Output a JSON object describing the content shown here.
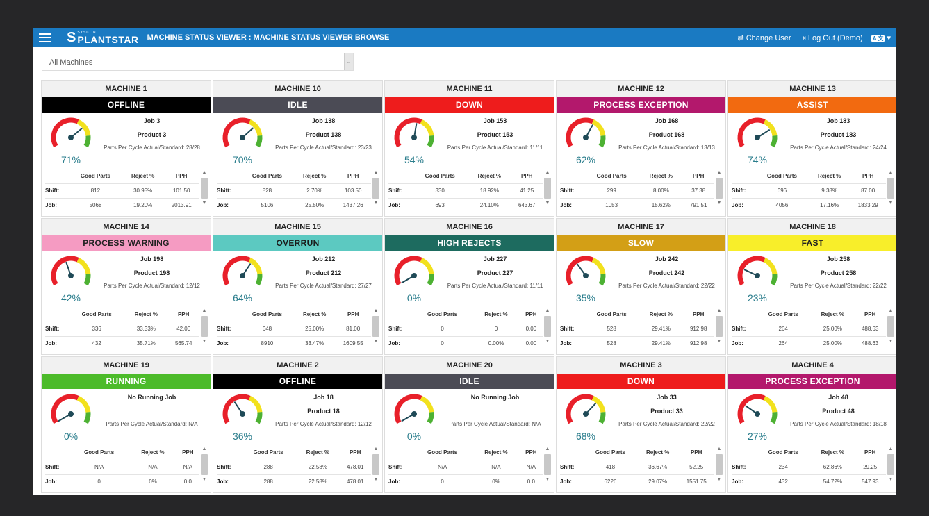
{
  "header": {
    "brand_small": "SYSCON",
    "brand": "PLANTSTAR",
    "title": "MACHINE STATUS VIEWER : MACHINE STATUS VIEWER BROWSE",
    "change_user": "⇄ Change User",
    "logout": "⇥ Log Out (Demo)",
    "lang": "A 文",
    "lang_caret": "▾"
  },
  "filter": {
    "value": "All Machines",
    "arrow": "⌄"
  },
  "table_headers": [
    "",
    "Good Parts",
    "Reject %",
    "PPH"
  ],
  "row_labels": [
    "Shift:",
    "Job:"
  ],
  "gauge_colors": {
    "red": "#e8202a",
    "yellow": "#f2e11d",
    "green": "#4db133",
    "needle": "#1f4a57"
  },
  "machines": [
    {
      "name": "MACHINE 1",
      "status": "OFFLINE",
      "bg": "#000000",
      "fg": "#ffffff",
      "pct": 71,
      "job": "Job 3",
      "product": "Product 3",
      "ppc": "Parts Per Cycle Actual/Standard: 28/28",
      "shift": [
        "812",
        "30.95%",
        "101.50"
      ],
      "jobrow": [
        "5068",
        "19.20%",
        "2013.91"
      ]
    },
    {
      "name": "MACHINE 10",
      "status": "IDLE",
      "bg": "#4b4b55",
      "fg": "#ffffff",
      "pct": 70,
      "job": "Job 138",
      "product": "Product 138",
      "ppc": "Parts Per Cycle Actual/Standard: 23/23",
      "shift": [
        "828",
        "2.70%",
        "103.50"
      ],
      "jobrow": [
        "5106",
        "25.50%",
        "1437.26"
      ]
    },
    {
      "name": "MACHINE 11",
      "status": "DOWN",
      "bg": "#ee1c1c",
      "fg": "#ffffff",
      "pct": 54,
      "job": "Job 153",
      "product": "Product 153",
      "ppc": "Parts Per Cycle Actual/Standard: 11/11",
      "shift": [
        "330",
        "18.92%",
        "41.25"
      ],
      "jobrow": [
        "693",
        "24.10%",
        "643.67"
      ]
    },
    {
      "name": "MACHINE 12",
      "status": "PROCESS EXCEPTION",
      "bg": "#b3186c",
      "fg": "#ffffff",
      "pct": 62,
      "job": "Job 168",
      "product": "Product 168",
      "ppc": "Parts Per Cycle Actual/Standard: 13/13",
      "shift": [
        "299",
        "8.00%",
        "37.38"
      ],
      "jobrow": [
        "1053",
        "15.62%",
        "791.51"
      ]
    },
    {
      "name": "MACHINE 13",
      "status": "ASSIST",
      "bg": "#f26a10",
      "fg": "#ffffff",
      "pct": 74,
      "job": "Job 183",
      "product": "Product 183",
      "ppc": "Parts Per Cycle Actual/Standard: 24/24",
      "shift": [
        "696",
        "9.38%",
        "87.00"
      ],
      "jobrow": [
        "4056",
        "17.16%",
        "1833.29"
      ]
    },
    {
      "name": "MACHINE 14",
      "status": "PROCESS WARNING",
      "bg": "#f59bc2",
      "fg": "#222222",
      "pct": 42,
      "job": "Job 198",
      "product": "Product 198",
      "ppc": "Parts Per Cycle Actual/Standard: 12/12",
      "shift": [
        "336",
        "33.33%",
        "42.00"
      ],
      "jobrow": [
        "432",
        "35.71%",
        "565.74"
      ]
    },
    {
      "name": "MACHINE 15",
      "status": "OVERRUN",
      "bg": "#5cc9c1",
      "fg": "#1a1a1a",
      "pct": 64,
      "job": "Job 212",
      "product": "Product 212",
      "ppc": "Parts Per Cycle Actual/Standard: 27/27",
      "shift": [
        "648",
        "25.00%",
        "81.00"
      ],
      "jobrow": [
        "8910",
        "33.47%",
        "1609.55"
      ]
    },
    {
      "name": "MACHINE 16",
      "status": "HIGH REJECTS",
      "bg": "#1d6b5f",
      "fg": "#ffffff",
      "pct": 0,
      "job": "Job 227",
      "product": "Product 227",
      "ppc": "Parts Per Cycle Actual/Standard: 11/11",
      "shift": [
        "0",
        "0",
        "0.00"
      ],
      "jobrow": [
        "0",
        "0.00%",
        "0.00"
      ]
    },
    {
      "name": "MACHINE 17",
      "status": "SLOW",
      "bg": "#d39f16",
      "fg": "#ffffff",
      "pct": 35,
      "job": "Job 242",
      "product": "Product 242",
      "ppc": "Parts Per Cycle Actual/Standard: 22/22",
      "shift": [
        "528",
        "29.41%",
        "912.98"
      ],
      "jobrow": [
        "528",
        "29.41%",
        "912.98"
      ]
    },
    {
      "name": "MACHINE 18",
      "status": "FAST",
      "bg": "#f8ee2a",
      "fg": "#222222",
      "pct": 23,
      "job": "Job 258",
      "product": "Product 258",
      "ppc": "Parts Per Cycle Actual/Standard: 22/22",
      "shift": [
        "264",
        "25.00%",
        "488.63"
      ],
      "jobrow": [
        "264",
        "25.00%",
        "488.63"
      ]
    },
    {
      "name": "MACHINE 19",
      "status": "RUNNING",
      "bg": "#4cbb2a",
      "fg": "#ffffff",
      "pct": 0,
      "job": "No Running Job",
      "product": "",
      "ppc": "Parts Per Cycle Actual/Standard: N/A",
      "shift": [
        "N/A",
        "N/A",
        "N/A"
      ],
      "jobrow": [
        "0",
        "0%",
        "0.0"
      ]
    },
    {
      "name": "MACHINE 2",
      "status": "OFFLINE",
      "bg": "#000000",
      "fg": "#ffffff",
      "pct": 36,
      "job": "Job 18",
      "product": "Product 18",
      "ppc": "Parts Per Cycle Actual/Standard: 12/12",
      "shift": [
        "288",
        "22.58%",
        "478.01"
      ],
      "jobrow": [
        "288",
        "22.58%",
        "478.01"
      ]
    },
    {
      "name": "MACHINE 20",
      "status": "IDLE",
      "bg": "#4b4b55",
      "fg": "#ffffff",
      "pct": 0,
      "job": "No Running Job",
      "product": "",
      "ppc": "Parts Per Cycle Actual/Standard: N/A",
      "shift": [
        "N/A",
        "N/A",
        "N/A"
      ],
      "jobrow": [
        "0",
        "0%",
        "0.0"
      ]
    },
    {
      "name": "MACHINE 3",
      "status": "DOWN",
      "bg": "#ee1c1c",
      "fg": "#ffffff",
      "pct": 68,
      "job": "Job 33",
      "product": "Product 33",
      "ppc": "Parts Per Cycle Actual/Standard: 22/22",
      "shift": [
        "418",
        "36.67%",
        "52.25"
      ],
      "jobrow": [
        "6226",
        "29.07%",
        "1551.75"
      ]
    },
    {
      "name": "MACHINE 4",
      "status": "PROCESS EXCEPTION",
      "bg": "#b3186c",
      "fg": "#ffffff",
      "pct": 27,
      "job": "Job 48",
      "product": "Product 48",
      "ppc": "Parts Per Cycle Actual/Standard: 18/18",
      "shift": [
        "234",
        "62.86%",
        "29.25"
      ],
      "jobrow": [
        "432",
        "54.72%",
        "547.93"
      ]
    }
  ]
}
